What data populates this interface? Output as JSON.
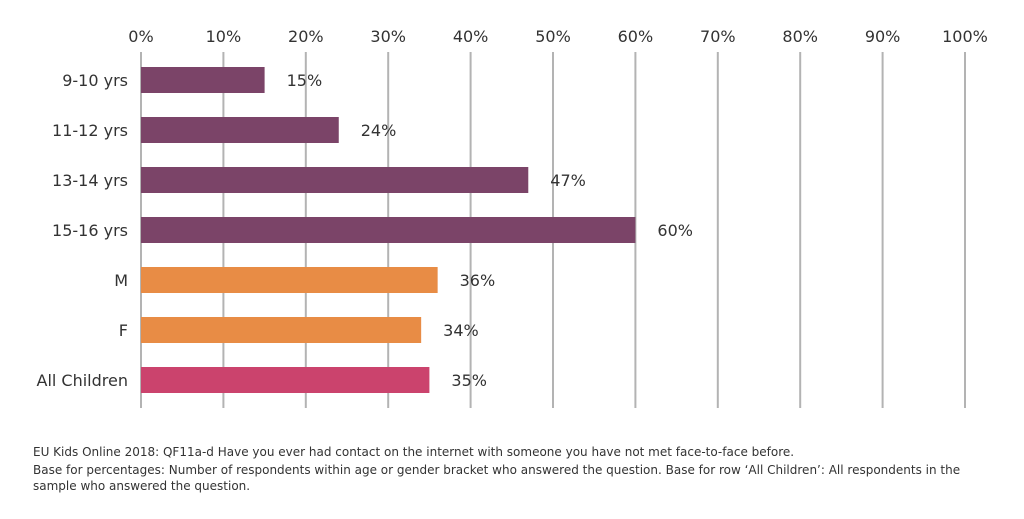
{
  "chart_data": {
    "type": "bar",
    "orientation": "horizontal",
    "x_ticks": [
      "0%",
      "10%",
      "20%",
      "30%",
      "40%",
      "50%",
      "60%",
      "70%",
      "80%",
      "90%",
      "100%"
    ],
    "xlim": [
      0,
      100
    ],
    "categories": [
      "9-10 yrs",
      "11-12 yrs",
      "13-14 yrs",
      "15-16 yrs",
      "M",
      "F",
      "All Children"
    ],
    "values": [
      15,
      24,
      47,
      60,
      36,
      34,
      35
    ],
    "value_labels": [
      "15%",
      "24%",
      "47%",
      "60%",
      "36%",
      "34%",
      "35%"
    ],
    "bar_colors": [
      "#7b4468",
      "#7b4468",
      "#7b4468",
      "#7b4468",
      "#e88c45",
      "#e88c45",
      "#cb436d"
    ],
    "grid": true,
    "gridline_color": "#b3b3b3",
    "x_axis_position": "top"
  },
  "footnotes": {
    "source": "EU Kids Online 2018: QF11a-d Have you ever had contact on the internet with someone you have not met face-to-face before.",
    "base": "Base for percentages: Number of respondents within age or gender bracket who answered the question. Base for row ‘All Children’: All respondents in the sample who answered the question."
  }
}
